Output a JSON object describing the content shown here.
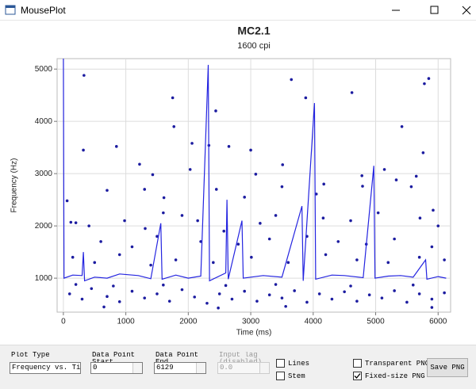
{
  "window": {
    "title": "MousePlot"
  },
  "chart_data": {
    "type": "scatter",
    "title": "MC2.1",
    "subtitle": "1600 cpi",
    "x_label": "Time (ms)",
    "y_label": "Frequency (Hz)",
    "xlim": [
      -100,
      6200
    ],
    "ylim": [
      350,
      5200
    ],
    "xticks": [
      0,
      1000,
      2000,
      3000,
      4000,
      5000,
      6000
    ],
    "yticks": [
      1000,
      2000,
      3000,
      4000,
      5000
    ],
    "grid": true,
    "series": [
      {
        "color": "#1c1ca0",
        "mode": "points",
        "x": [
          330,
          1750,
          1770,
          2440,
          3650,
          3880,
          4620,
          5420,
          5780,
          5850,
          320,
          850,
          2060,
          2330,
          2650,
          3000,
          3510,
          5760,
          5650,
          1220,
          1430,
          2030,
          3080,
          4780,
          4170,
          5140,
          5330,
          700,
          1300,
          1610,
          2450,
          2900,
          3500,
          4050,
          4790,
          5570,
          5920,
          60,
          120,
          200,
          410,
          980,
          1310,
          1600,
          1900,
          2150,
          2570,
          3150,
          3400,
          4160,
          4600,
          5040,
          5710,
          6000,
          600,
          1100,
          1500,
          2200,
          2800,
          3300,
          3900,
          4400,
          4850,
          5300,
          5900,
          150,
          500,
          900,
          1400,
          1800,
          2400,
          3010,
          3600,
          4200,
          4700,
          5200,
          5700,
          6100,
          100,
          300,
          450,
          700,
          900,
          1100,
          1300,
          1500,
          1700,
          1900,
          2100,
          2300,
          2500,
          2700,
          2900,
          3100,
          3300,
          3500,
          3700,
          3900,
          4100,
          4300,
          4500,
          4700,
          4900,
          5100,
          5300,
          5500,
          5700,
          5900,
          6100,
          200,
          800,
          1600,
          2600,
          3400,
          4600,
          5600,
          650,
          2480,
          3560,
          5900
        ],
        "values": [
          4880,
          4450,
          3900,
          4200,
          4800,
          4450,
          4550,
          3900,
          4720,
          4820,
          3450,
          3520,
          3580,
          3540,
          3520,
          3450,
          3170,
          3400,
          2950,
          3180,
          2980,
          3080,
          2990,
          2960,
          2800,
          3080,
          2880,
          2680,
          2700,
          2540,
          2700,
          2550,
          2750,
          2610,
          2760,
          2750,
          2300,
          2480,
          2070,
          2060,
          2000,
          2100,
          1950,
          2250,
          2200,
          2100,
          1900,
          2050,
          2200,
          2150,
          2100,
          2250,
          2150,
          2000,
          1700,
          1600,
          1800,
          1700,
          1650,
          1750,
          1800,
          1700,
          1650,
          1750,
          1600,
          1400,
          1300,
          1450,
          1250,
          1350,
          1300,
          1400,
          1300,
          1450,
          1350,
          1300,
          1400,
          1350,
          700,
          600,
          800,
          650,
          550,
          750,
          620,
          700,
          560,
          780,
          640,
          520,
          700,
          600,
          750,
          560,
          680,
          620,
          760,
          540,
          700,
          600,
          740,
          560,
          680,
          620,
          760,
          540,
          700,
          600,
          720,
          880,
          850,
          870,
          860,
          880,
          850,
          870,
          450,
          430,
          460,
          440
        ]
      },
      {
        "color": "#2424e0",
        "mode": "line",
        "x": [
          0,
          10,
          150,
          300,
          320,
          340,
          500,
          700,
          900,
          1200,
          1400,
          1560,
          1580,
          1800,
          2000,
          2200,
          2320,
          2340,
          2600,
          2620,
          2640,
          2860,
          2880,
          3200,
          3500,
          3820,
          3840,
          4020,
          4040,
          4300,
          4500,
          4800,
          4970,
          4990,
          5200,
          5400,
          5600,
          5800,
          5820,
          6000,
          6129
        ],
        "values": [
          5300,
          1000,
          1060,
          1050,
          1500,
          950,
          1020,
          1000,
          1080,
          1050,
          990,
          2050,
          980,
          1060,
          1000,
          1040,
          5080,
          950,
          1100,
          2500,
          980,
          2100,
          1000,
          1050,
          1020,
          2380,
          950,
          4350,
          980,
          1060,
          1050,
          1010,
          3150,
          1000,
          1040,
          1050,
          1020,
          1350,
          980,
          1030,
          1000
        ]
      }
    ]
  },
  "controls": {
    "plot_type": {
      "label": "Plot Type",
      "value": "Frequency vs. Ti"
    },
    "start": {
      "label": "Data Point Start",
      "value": "0"
    },
    "end": {
      "label": "Data Point End",
      "value": "6129"
    },
    "lag": {
      "label": "Input lag (disabled)",
      "value": "0.0"
    },
    "lines": {
      "label": "Lines",
      "checked": false
    },
    "stem": {
      "label": "Stem",
      "checked": false
    },
    "transparent": {
      "label": "Transparent PNG",
      "checked": false
    },
    "fixed": {
      "label": "Fixed-size PNG",
      "checked": true
    },
    "save": {
      "label": "Save PNG"
    }
  }
}
